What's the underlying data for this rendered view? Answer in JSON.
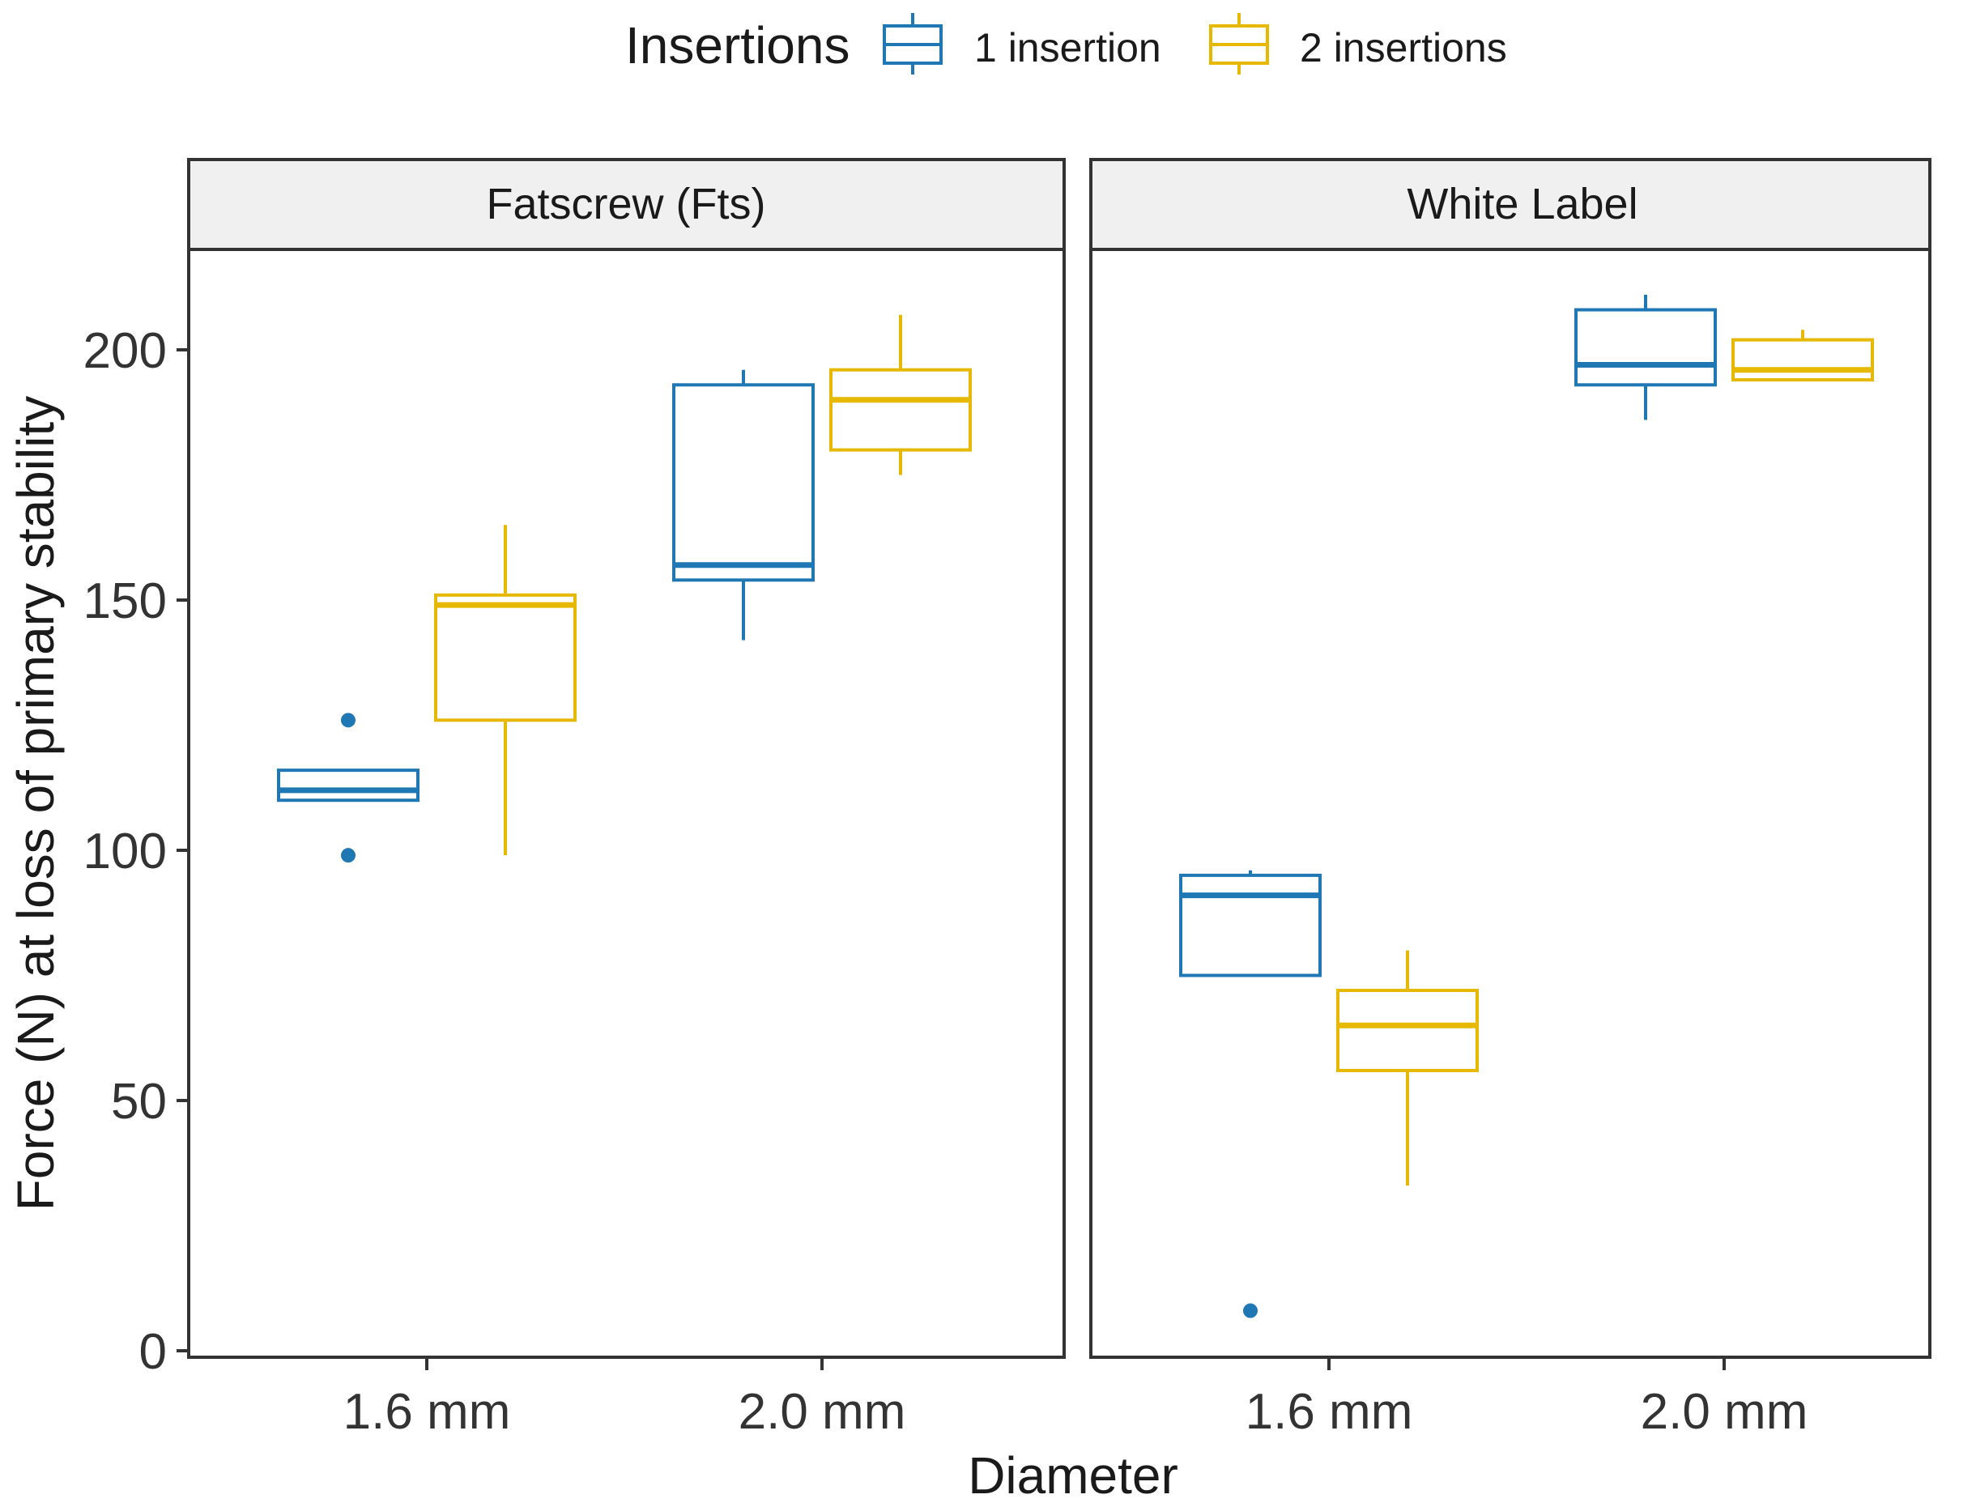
{
  "chart_data": {
    "type": "boxplot",
    "xlabel": "Diameter",
    "ylabel": "Force (N) at loss of primary stability",
    "ylim": [
      0,
      215
    ],
    "yticks": [
      0,
      50,
      100,
      150,
      200
    ],
    "categories": [
      "1.6 mm",
      "2.0 mm"
    ],
    "legend": {
      "title": "Insertions",
      "position": "top",
      "items": [
        {
          "name": "1 insertion",
          "color": "#1f77b4"
        },
        {
          "name": "2 insertions",
          "color": "#e6b800"
        }
      ]
    },
    "facets": [
      {
        "label": "Fatscrew (Fts)",
        "groups": [
          {
            "category": "1.6 mm",
            "series": "1 insertion",
            "q1": 110,
            "median": 112,
            "q3": 116,
            "whisker_low": 110,
            "whisker_high": 116,
            "outliers": [
              99,
              126
            ]
          },
          {
            "category": "1.6 mm",
            "series": "2 insertions",
            "q1": 126,
            "median": 149,
            "q3": 151,
            "whisker_low": 99,
            "whisker_high": 165,
            "outliers": []
          },
          {
            "category": "2.0 mm",
            "series": "1 insertion",
            "q1": 154,
            "median": 157,
            "q3": 193,
            "whisker_low": 142,
            "whisker_high": 196,
            "outliers": []
          },
          {
            "category": "2.0 mm",
            "series": "2 insertions",
            "q1": 180,
            "median": 190,
            "q3": 196,
            "whisker_low": 175,
            "whisker_high": 207,
            "outliers": []
          }
        ]
      },
      {
        "label": "White Label",
        "groups": [
          {
            "category": "1.6 mm",
            "series": "1 insertion",
            "q1": 75,
            "median": 91,
            "q3": 95,
            "whisker_low": 75,
            "whisker_high": 96,
            "outliers": [
              8
            ]
          },
          {
            "category": "1.6 mm",
            "series": "2 insertions",
            "q1": 56,
            "median": 65,
            "q3": 72,
            "whisker_low": 33,
            "whisker_high": 80,
            "outliers": []
          },
          {
            "category": "2.0 mm",
            "series": "1 insertion",
            "q1": 193,
            "median": 197,
            "q3": 208,
            "whisker_low": 186,
            "whisker_high": 211,
            "outliers": []
          },
          {
            "category": "2.0 mm",
            "series": "2 insertions",
            "q1": 194,
            "median": 196,
            "q3": 202,
            "whisker_low": 194,
            "whisker_high": 204,
            "outliers": []
          }
        ]
      }
    ]
  }
}
